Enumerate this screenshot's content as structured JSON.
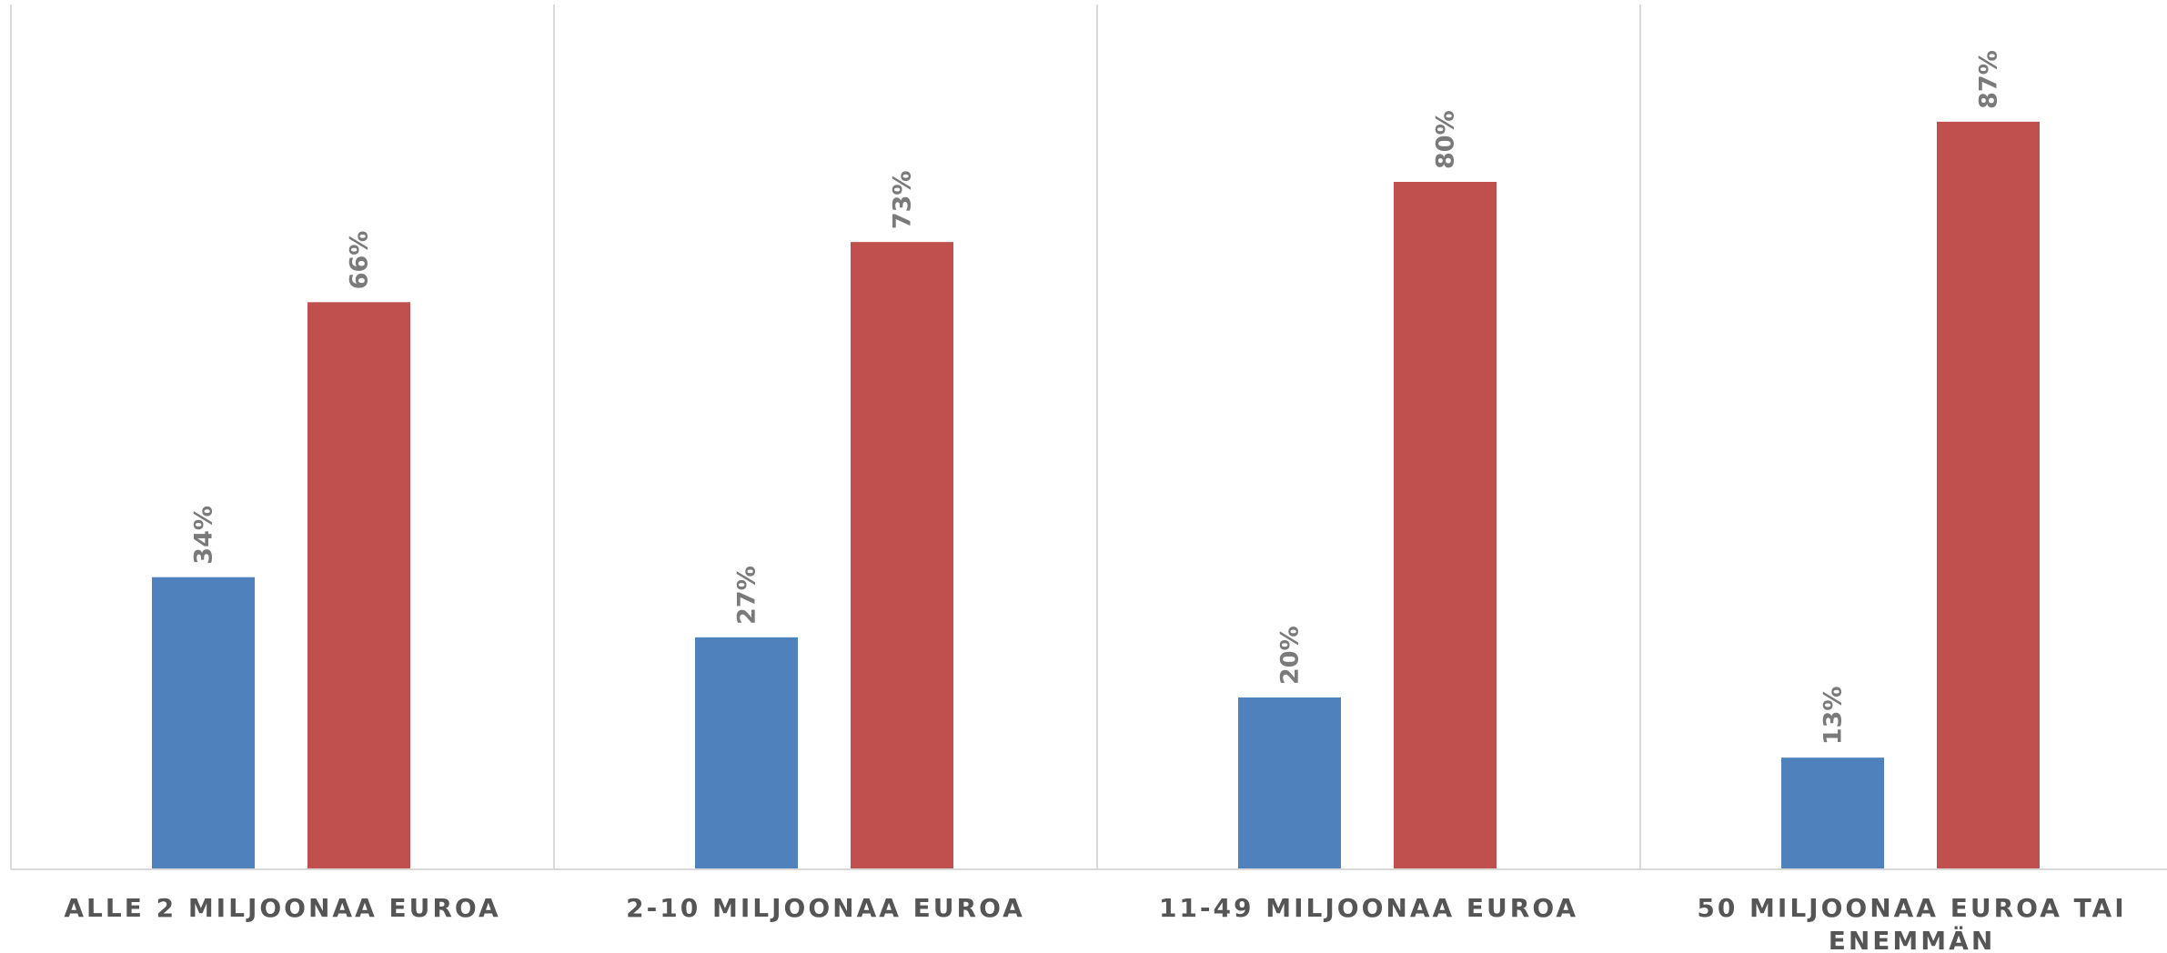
{
  "chart_data": {
    "type": "bar",
    "title": "",
    "xlabel": "",
    "ylabel": "",
    "ylim": [
      0,
      100
    ],
    "grid": false,
    "legend": "none",
    "categories": [
      [
        "ALLE 2 MILJOONAA EUROA"
      ],
      [
        "2-10 MILJOONAA EUROA"
      ],
      [
        "11-49 MILJOONAA EUROA"
      ],
      [
        "50 MILJOONAA EUROA TAI",
        "ENEMMÄN"
      ]
    ],
    "series": [
      {
        "color": "#4f81bd",
        "values": [
          34,
          27,
          20,
          13
        ]
      },
      {
        "color": "#c0504d",
        "values": [
          66,
          73,
          80,
          87
        ]
      }
    ],
    "value_suffix": "%"
  }
}
